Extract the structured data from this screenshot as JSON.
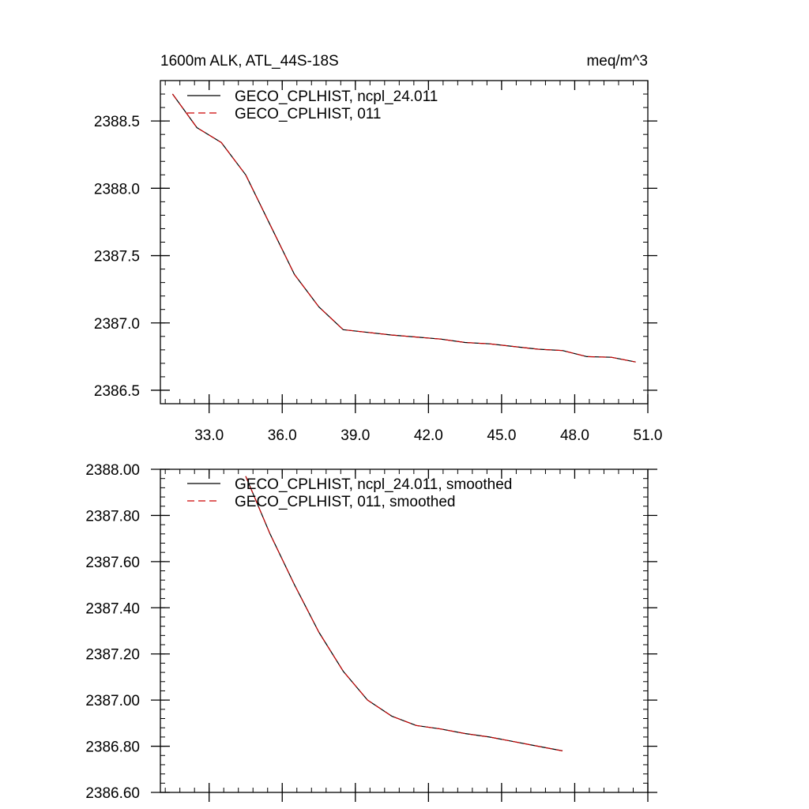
{
  "figure": {
    "title_left": "1600m ALK, ATL_44S-18S",
    "title_right": "meq/m^3"
  },
  "colors": {
    "series1": "#000000",
    "series2": "#cc0000",
    "axis": "#000000"
  },
  "chart_data": [
    {
      "type": "line",
      "title": "1600m ALK, ATL_44S-18S",
      "units": "meq/m^3",
      "xlim": [
        31.0,
        51.0
      ],
      "ylim": [
        2386.4,
        2388.8
      ],
      "x_ticks": [
        33.0,
        36.0,
        39.0,
        42.0,
        45.0,
        48.0,
        51.0
      ],
      "x_tick_labels": [
        "33.0",
        "36.0",
        "39.0",
        "42.0",
        "45.0",
        "48.0",
        "51.0"
      ],
      "y_ticks": [
        2386.5,
        2387.0,
        2387.5,
        2388.0,
        2388.5
      ],
      "y_tick_labels": [
        "2386.5",
        "2387.0",
        "2387.5",
        "2388.0",
        "2388.5"
      ],
      "series": [
        {
          "name": "GECO_CPLHIST, ncpl_24.011",
          "style": "solid",
          "x": [
            31.5,
            32.5,
            33.5,
            34.5,
            35.5,
            36.5,
            37.5,
            38.5,
            39.5,
            40.5,
            41.5,
            42.5,
            43.5,
            44.5,
            45.5,
            46.5,
            47.5,
            48.5,
            49.5,
            50.5
          ],
          "y": [
            2388.7,
            2388.45,
            2388.34,
            2388.1,
            2387.73,
            2387.36,
            2387.12,
            2386.95,
            2386.93,
            2386.91,
            2386.895,
            2386.88,
            2386.855,
            2386.845,
            2386.825,
            2386.805,
            2386.795,
            2386.75,
            2386.745,
            2386.71
          ]
        },
        {
          "name": "GECO_CPLHIST, 011",
          "style": "dashed",
          "x": [
            31.5,
            32.5,
            33.5,
            34.5,
            35.5,
            36.5,
            37.5,
            38.5,
            39.5,
            40.5,
            41.5,
            42.5,
            43.5,
            44.5,
            45.5,
            46.5,
            47.5,
            48.5,
            49.5,
            50.5
          ],
          "y": [
            2388.7,
            2388.45,
            2388.34,
            2388.1,
            2387.73,
            2387.36,
            2387.12,
            2386.95,
            2386.93,
            2386.91,
            2386.895,
            2386.88,
            2386.855,
            2386.845,
            2386.825,
            2386.805,
            2386.795,
            2386.75,
            2386.745,
            2386.71
          ]
        }
      ]
    },
    {
      "type": "line",
      "title": "",
      "xlim": [
        31.0,
        51.0
      ],
      "ylim": [
        2386.6,
        2388.0
      ],
      "x_ticks": [
        33.0,
        36.0,
        39.0,
        42.0,
        45.0,
        48.0,
        51.0
      ],
      "x_tick_labels": [],
      "y_ticks": [
        2386.6,
        2386.8,
        2387.0,
        2387.2,
        2387.4,
        2387.6,
        2387.8,
        2388.0
      ],
      "y_tick_labels": [
        "2386.60",
        "2386.80",
        "2387.00",
        "2387.20",
        "2387.40",
        "2387.60",
        "2387.80",
        "2388.00"
      ],
      "series": [
        {
          "name": "GECO_CPLHIST, ncpl_24.011, smoothed",
          "style": "solid",
          "x": [
            34.5,
            35.5,
            36.5,
            37.5,
            38.5,
            39.5,
            40.5,
            41.5,
            42.5,
            43.5,
            44.5,
            45.5,
            46.5,
            47.5
          ],
          "y": [
            2387.97,
            2387.72,
            2387.5,
            2387.295,
            2387.125,
            2387.0,
            2386.93,
            2386.89,
            2386.875,
            2386.855,
            2386.84,
            2386.82,
            2386.8,
            2386.78
          ]
        },
        {
          "name": "GECO_CPLHIST, 011, smoothed",
          "style": "dashed",
          "x": [
            34.5,
            35.5,
            36.5,
            37.5,
            38.5,
            39.5,
            40.5,
            41.5,
            42.5,
            43.5,
            44.5,
            45.5,
            46.5,
            47.5
          ],
          "y": [
            2387.97,
            2387.72,
            2387.5,
            2387.295,
            2387.125,
            2387.0,
            2386.93,
            2386.89,
            2386.875,
            2386.855,
            2386.84,
            2386.82,
            2386.8,
            2386.78
          ]
        }
      ]
    }
  ]
}
